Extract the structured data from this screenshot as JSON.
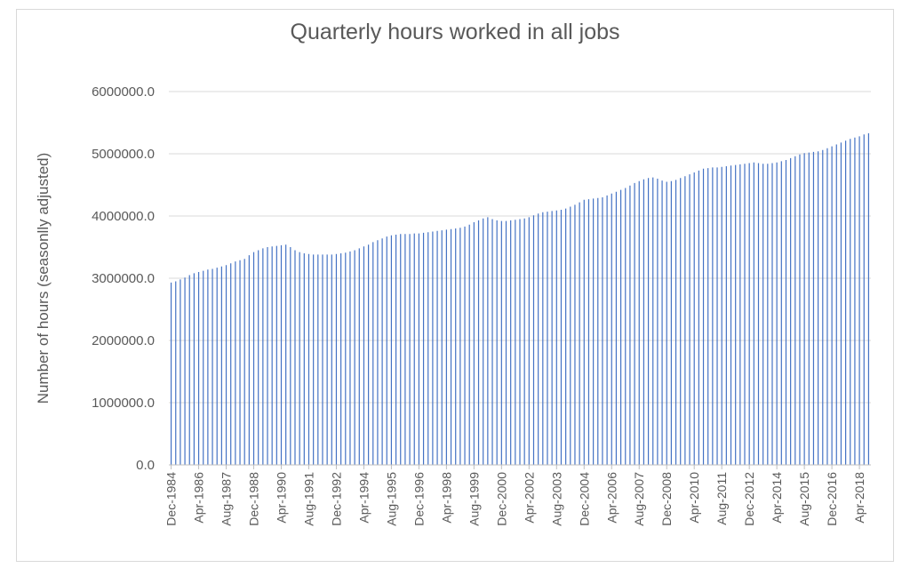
{
  "chart_data": {
    "type": "bar",
    "title": "Quarterly hours worked in all jobs",
    "xlabel": "",
    "ylabel": "Number of hours (seasonlly adjusted)",
    "ylim": [
      0,
      6000000
    ],
    "y_ticks": [
      "0.0",
      "1000000.0",
      "2000000.0",
      "3000000.0",
      "4000000.0",
      "5000000.0",
      "6000000.0"
    ],
    "x_tick_labels": [
      "Dec-1984",
      "Apr-1986",
      "Aug-1987",
      "Dec-1988",
      "Apr-1990",
      "Aug-1991",
      "Dec-1992",
      "Apr-1994",
      "Aug-1995",
      "Dec-1996",
      "Apr-1998",
      "Aug-1999",
      "Dec-2000",
      "Apr-2002",
      "Aug-2003",
      "Dec-2004",
      "Apr-2006",
      "Aug-2007",
      "Dec-2008",
      "Apr-2010",
      "Aug-2011",
      "Dec-2012",
      "Apr-2014",
      "Aug-2015",
      "Dec-2016",
      "Apr-2018"
    ],
    "grid": true,
    "bar_color": "#4472c4",
    "values": [
      2930000,
      2950000,
      2980000,
      3010000,
      3050000,
      3080000,
      3100000,
      3120000,
      3140000,
      3150000,
      3170000,
      3190000,
      3210000,
      3240000,
      3270000,
      3290000,
      3310000,
      3370000,
      3420000,
      3450000,
      3480000,
      3500000,
      3510000,
      3520000,
      3530000,
      3540000,
      3500000,
      3450000,
      3420000,
      3400000,
      3390000,
      3380000,
      3380000,
      3380000,
      3380000,
      3380000,
      3390000,
      3400000,
      3410000,
      3430000,
      3450000,
      3480000,
      3510000,
      3540000,
      3580000,
      3610000,
      3640000,
      3670000,
      3690000,
      3700000,
      3710000,
      3710000,
      3710000,
      3720000,
      3720000,
      3730000,
      3740000,
      3750000,
      3760000,
      3770000,
      3780000,
      3790000,
      3800000,
      3810000,
      3830000,
      3860000,
      3900000,
      3930000,
      3960000,
      3980000,
      3950000,
      3930000,
      3920000,
      3920000,
      3930000,
      3940000,
      3950000,
      3960000,
      3980000,
      4010000,
      4040000,
      4060000,
      4070000,
      4080000,
      4090000,
      4100000,
      4120000,
      4150000,
      4180000,
      4220000,
      4260000,
      4270000,
      4280000,
      4290000,
      4300000,
      4330000,
      4360000,
      4390000,
      4420000,
      4450000,
      4490000,
      4530000,
      4560000,
      4590000,
      4610000,
      4620000,
      4600000,
      4570000,
      4550000,
      4560000,
      4580000,
      4610000,
      4640000,
      4670000,
      4700000,
      4730000,
      4760000,
      4770000,
      4780000,
      4780000,
      4790000,
      4800000,
      4810000,
      4820000,
      4830000,
      4840000,
      4850000,
      4860000,
      4850000,
      4840000,
      4840000,
      4850000,
      4860000,
      4880000,
      4900000,
      4930000,
      4960000,
      4990000,
      5010000,
      5020000,
      5030000,
      5040000,
      5060000,
      5090000,
      5120000,
      5150000,
      5180000,
      5210000,
      5240000,
      5260000,
      5280000,
      5310000,
      5330000
    ]
  }
}
